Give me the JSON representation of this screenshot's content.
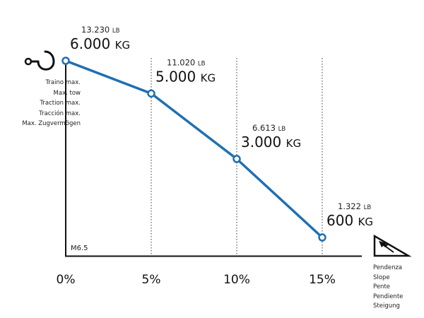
{
  "chart_data": {
    "type": "line",
    "series_color": "#1f6fb2",
    "model": "M6.5",
    "x": [
      "0%",
      "5%",
      "10%",
      "15%"
    ],
    "points": [
      {
        "slope": "0%",
        "kg_value": 6000,
        "kg_text": "6.000",
        "lb_text": "13.230",
        "kg_unit": "KG",
        "lb_unit": "LB"
      },
      {
        "slope": "5%",
        "kg_value": 5000,
        "kg_text": "5.000",
        "lb_text": "11.020",
        "kg_unit": "KG",
        "lb_unit": "LB"
      },
      {
        "slope": "10%",
        "kg_value": 3000,
        "kg_text": "3.000",
        "lb_text": "6.613",
        "kg_unit": "KG",
        "lb_unit": "LB"
      },
      {
        "slope": "15%",
        "kg_value": 600,
        "kg_text": "600",
        "lb_text": "1.322",
        "kg_unit": "KG",
        "lb_unit": "LB"
      }
    ],
    "ylim": [
      0,
      6750
    ],
    "grid": "dotted vertical lines at 5%, 10%, 15%",
    "y_axis_labels": [
      "Traino max.",
      "Max. tow",
      "Traction max.",
      "Tracción max.",
      "Max. Zugvermögen"
    ],
    "x_axis_labels": [
      "Pendenza",
      "Slope",
      "Pente",
      "Pendiente",
      "Steigung"
    ]
  },
  "icons": {
    "tow": "tow-hook-icon",
    "slope": "slope-triangle-icon"
  }
}
